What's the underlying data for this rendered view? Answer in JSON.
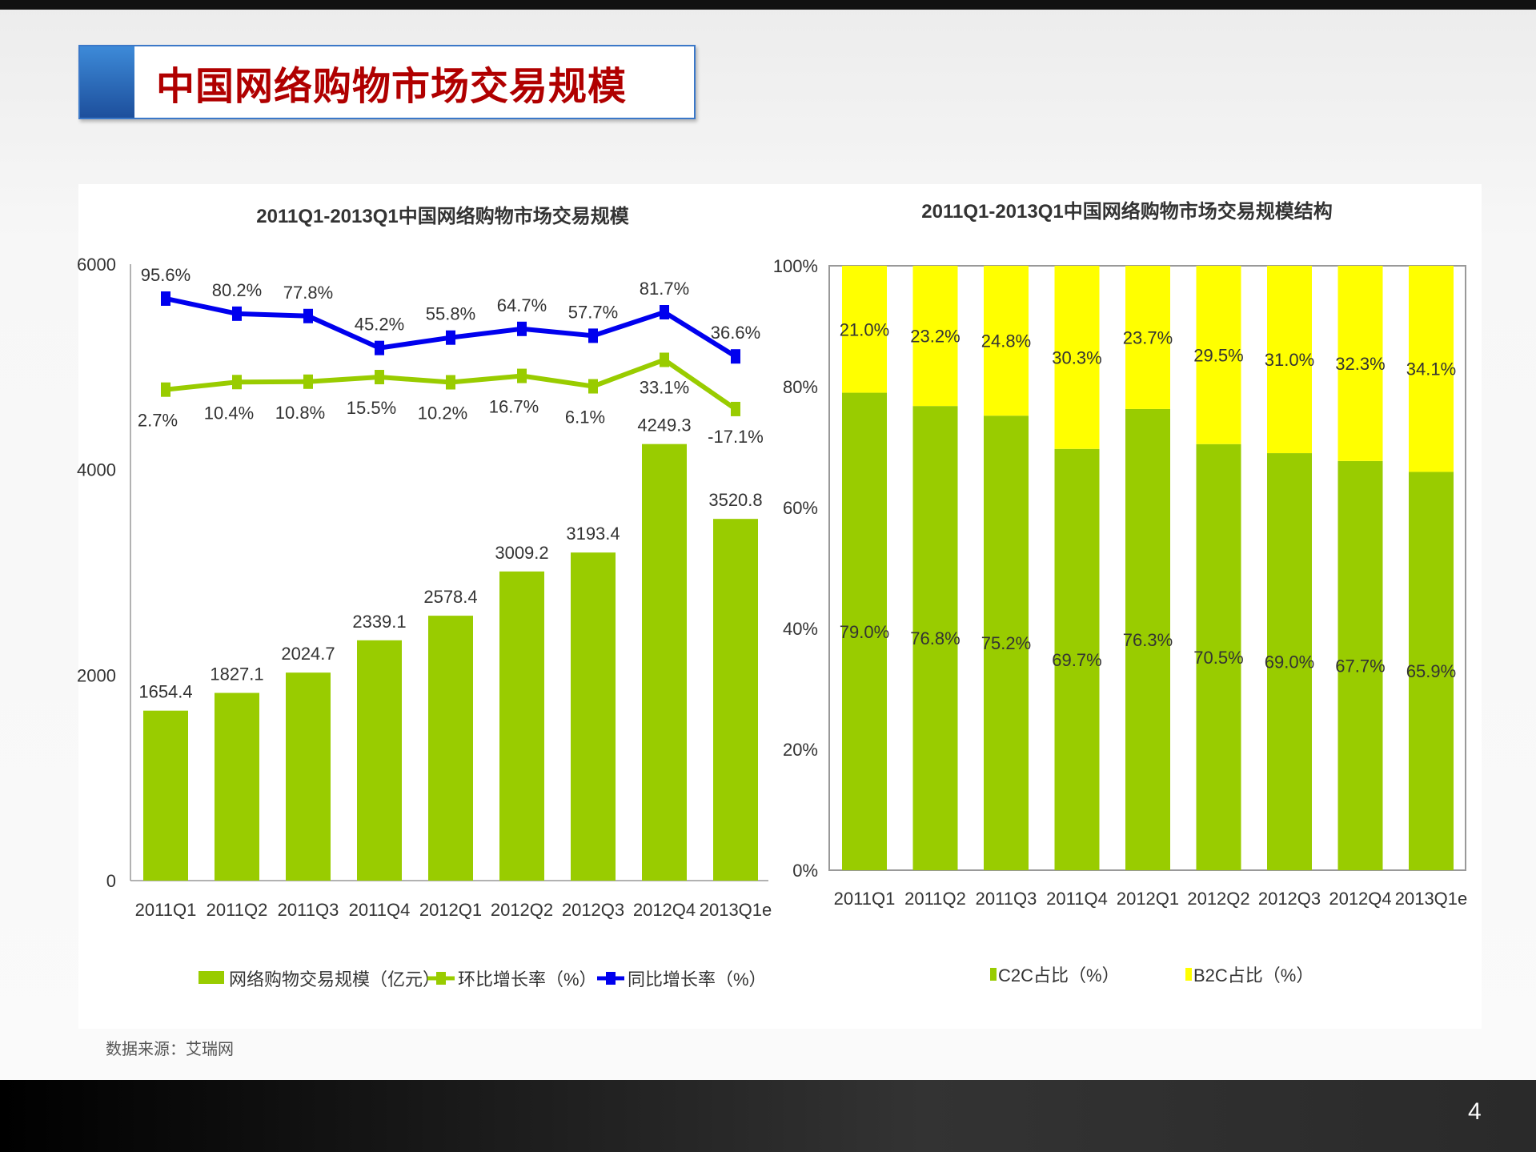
{
  "slide": {
    "title": "中国网络购物市场交易规模",
    "source": "数据来源：艾瑞网",
    "page_number": "4"
  },
  "chart_data": [
    {
      "type": "bar",
      "title": "2011Q1-2013Q1中国网络购物市场交易规模",
      "categories": [
        "2011Q1",
        "2011Q2",
        "2011Q3",
        "2011Q4",
        "2012Q1",
        "2012Q2",
        "2012Q3",
        "2012Q4",
        "2013Q1e"
      ],
      "ylim": [
        0,
        6000
      ],
      "yticks": [
        "0",
        "2000",
        "4000",
        "6000"
      ],
      "series": [
        {
          "name": "网络购物交易规模（亿元）",
          "kind": "bar",
          "color": "#99cc00",
          "values": [
            1654.4,
            1827.1,
            2024.7,
            2339.1,
            2578.4,
            3009.2,
            3193.4,
            4249.3,
            3520.8
          ],
          "labels": [
            "1654.4",
            "1827.1",
            "2024.7",
            "2339.1",
            "2578.4",
            "3009.2",
            "3193.4",
            "4249.3",
            "3520.8"
          ]
        },
        {
          "name": "环比增长率（%）",
          "kind": "line",
          "color": "#99cc00",
          "values": [
            2.7,
            10.4,
            10.8,
            15.5,
            10.2,
            16.7,
            6.1,
            33.1,
            -17.1
          ],
          "labels": [
            "2.7%",
            "10.4%",
            "10.8%",
            "15.5%",
            "10.2%",
            "16.7%",
            "6.1%",
            "33.1%",
            "-17.1%"
          ]
        },
        {
          "name": "同比增长率（%）",
          "kind": "line",
          "color": "#0000ee",
          "values": [
            95.6,
            80.2,
            77.8,
            45.2,
            55.8,
            64.7,
            57.7,
            81.7,
            36.6
          ],
          "labels": [
            "95.6%",
            "80.2%",
            "77.8%",
            "45.2%",
            "55.8%",
            "64.7%",
            "57.7%",
            "81.7%",
            "36.6%"
          ]
        }
      ],
      "legend": "bottom"
    },
    {
      "type": "bar",
      "stacked": true,
      "title": "2011Q1-2013Q1中国网络购物市场交易规模结构",
      "categories": [
        "2011Q1",
        "2011Q2",
        "2011Q3",
        "2011Q4",
        "2012Q1",
        "2012Q2",
        "2012Q3",
        "2012Q4",
        "2013Q1e"
      ],
      "ylim": [
        0,
        100
      ],
      "yticks": [
        "0%",
        "20%",
        "40%",
        "60%",
        "80%",
        "100%"
      ],
      "series": [
        {
          "name": "C2C占比（%）",
          "color": "#99cc00",
          "values": [
            79.0,
            76.8,
            75.2,
            69.7,
            76.3,
            70.5,
            69.0,
            67.7,
            65.9
          ],
          "labels": [
            "79.0%",
            "76.8%",
            "75.2%",
            "69.7%",
            "76.3%",
            "70.5%",
            "69.0%",
            "67.7%",
            "65.9%"
          ]
        },
        {
          "name": "B2C占比（%）",
          "color": "#ffff00",
          "values": [
            21.0,
            23.2,
            24.8,
            30.3,
            23.7,
            29.5,
            31.0,
            32.3,
            34.1
          ],
          "labels": [
            "21.0%",
            "23.2%",
            "24.8%",
            "30.3%",
            "23.7%",
            "29.5%",
            "31.0%",
            "32.3%",
            "34.1%"
          ]
        }
      ],
      "legend": "bottom"
    }
  ]
}
